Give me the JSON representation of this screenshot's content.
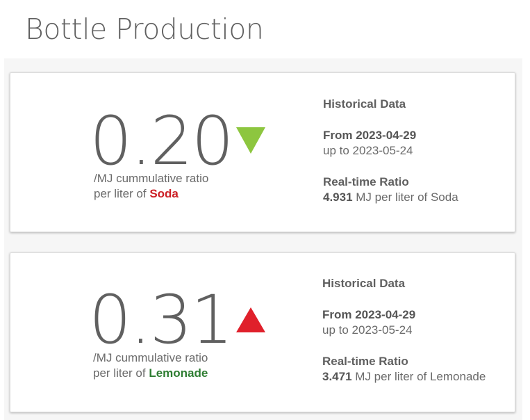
{
  "page": {
    "title": "Bottle Production"
  },
  "cards": [
    {
      "value": "0.20",
      "trend": "down",
      "trend_color": "#8dc63f",
      "caption_line1": "/MJ cummulative ratio",
      "caption_prefix": "per liter of ",
      "product": "Soda",
      "product_color": "#cc1f25",
      "historical_heading": "Historical Data",
      "from_label": "From 2023-04-29",
      "to_label": "up to 2023-05-24",
      "realtime_heading": "Real-time Ratio",
      "realtime_value": "4.931",
      "realtime_suffix": " MJ per liter of Soda"
    },
    {
      "value": "0.31",
      "trend": "up",
      "trend_color": "#e0202b",
      "caption_line1": "/MJ cummulative ratio",
      "caption_prefix": "per liter of ",
      "product": "Lemonade",
      "product_color": "#2e7d32",
      "historical_heading": "Historical Data",
      "from_label": "From 2023-04-29",
      "to_label": "up to 2023-05-24",
      "realtime_heading": "Real-time Ratio",
      "realtime_value": "3.471",
      "realtime_suffix": " MJ per liter of Lemonade"
    }
  ]
}
